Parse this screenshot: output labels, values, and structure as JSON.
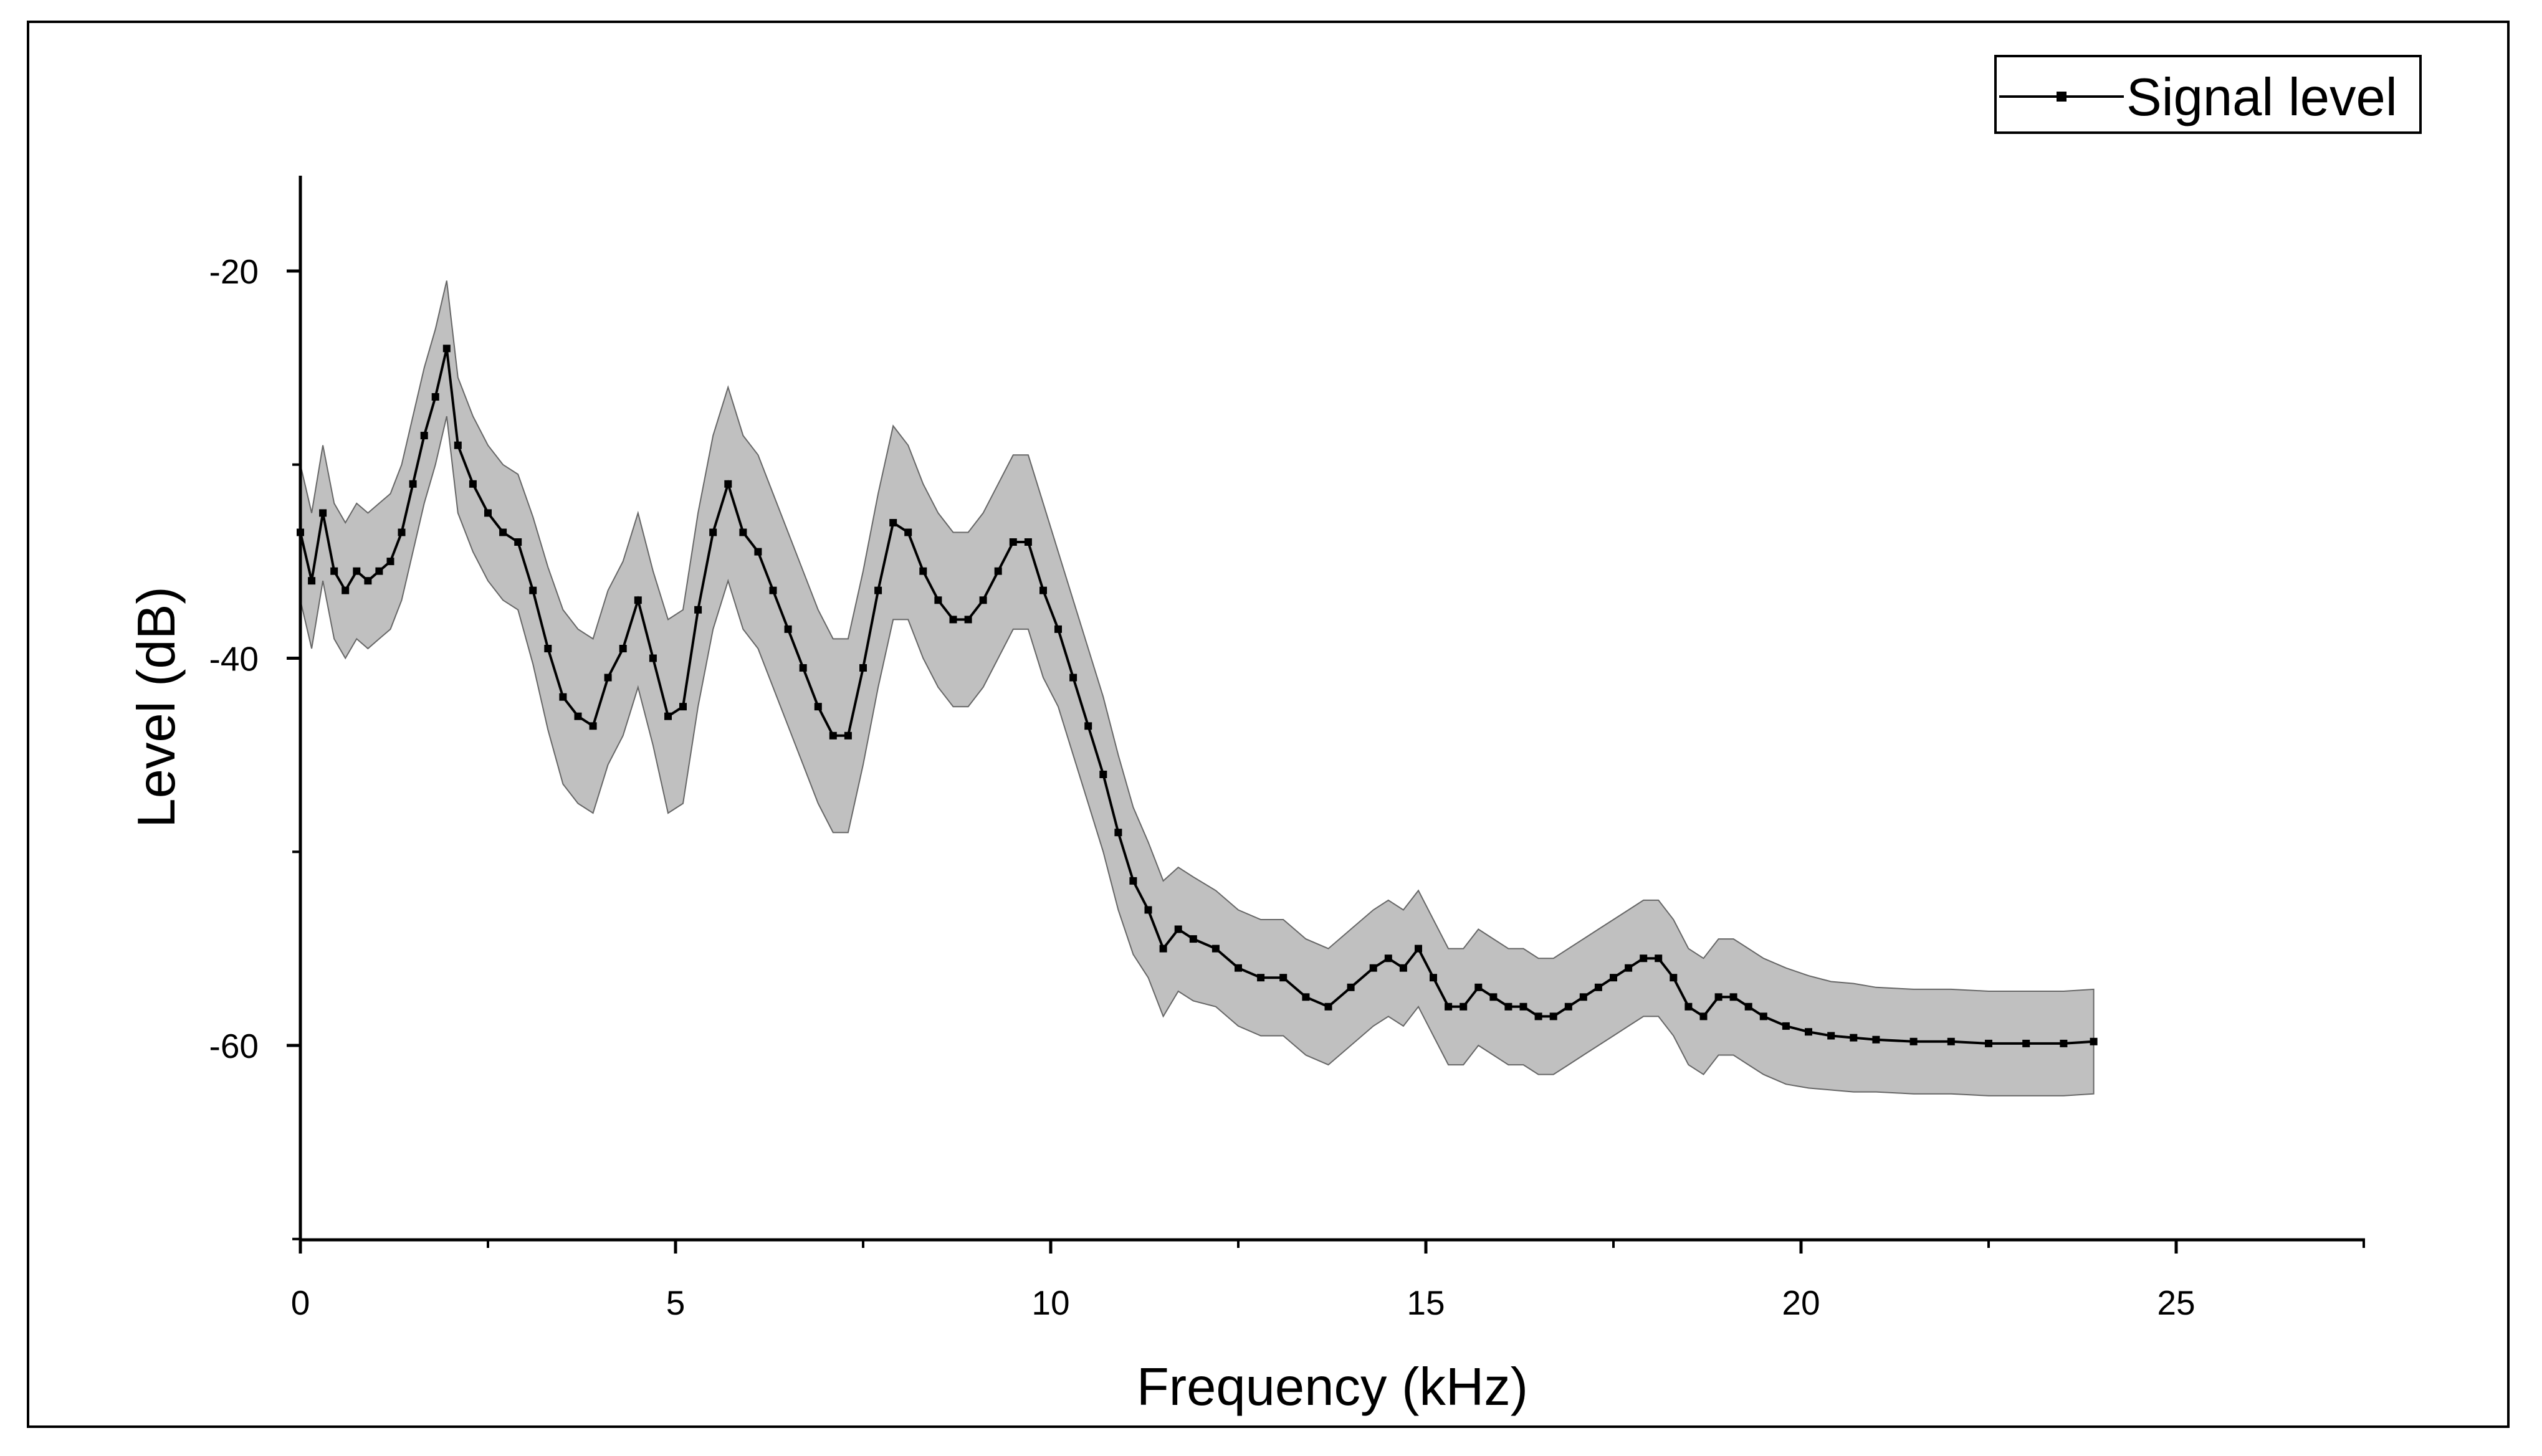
{
  "chart_data": {
    "type": "line",
    "title": "",
    "xlabel": "Frequency (kHz)",
    "ylabel": "Level (dB)",
    "xlim": [
      0,
      27.5
    ],
    "ylim": [
      -70,
      -15
    ],
    "xticks": [
      0,
      5,
      10,
      15,
      20,
      25
    ],
    "xtick_labels": [
      "0",
      "5",
      "10",
      "15",
      "20",
      "25"
    ],
    "yticks": [
      -20,
      -40,
      -60
    ],
    "ytick_labels": [
      "-20",
      "-40",
      "-60"
    ],
    "grid": false,
    "legend": {
      "position": "top-right",
      "entries": [
        "Signal level"
      ]
    },
    "colors": {
      "line": "#000000",
      "band": "#c0c0c0",
      "band_edge": "#555555"
    },
    "series": [
      {
        "name": "Signal level",
        "x": [
          0,
          0.15,
          0.3,
          0.45,
          0.6,
          0.75,
          0.9,
          1.05,
          1.2,
          1.35,
          1.5,
          1.65,
          1.8,
          1.95,
          2.1,
          2.3,
          2.5,
          2.7,
          2.9,
          3.1,
          3.3,
          3.5,
          3.7,
          3.9,
          4.1,
          4.3,
          4.5,
          4.7,
          4.9,
          5.1,
          5.3,
          5.5,
          5.7,
          5.9,
          6.1,
          6.3,
          6.5,
          6.7,
          6.9,
          7.1,
          7.3,
          7.5,
          7.7,
          7.9,
          8.1,
          8.3,
          8.5,
          8.7,
          8.9,
          9.1,
          9.3,
          9.5,
          9.7,
          9.9,
          10.1,
          10.3,
          10.5,
          10.7,
          10.9,
          11.1,
          11.3,
          11.5,
          11.7,
          11.9,
          12.2,
          12.5,
          12.8,
          13.1,
          13.4,
          13.7,
          14.0,
          14.3,
          14.5,
          14.7,
          14.9,
          15.1,
          15.3,
          15.5,
          15.7,
          15.9,
          16.1,
          16.3,
          16.5,
          16.7,
          16.9,
          17.1,
          17.3,
          17.5,
          17.7,
          17.9,
          18.1,
          18.3,
          18.5,
          18.7,
          18.9,
          19.1,
          19.3,
          19.5,
          19.8,
          20.1,
          20.4,
          20.7,
          21.0,
          21.5,
          22.0,
          22.5,
          23.0,
          23.5,
          23.9
        ],
        "y": [
          -33.5,
          -36.0,
          -32.5,
          -35.5,
          -36.5,
          -35.5,
          -36.0,
          -35.5,
          -35.0,
          -33.5,
          -31.0,
          -28.5,
          -26.5,
          -24.0,
          -29.0,
          -31.0,
          -32.5,
          -33.5,
          -34.0,
          -36.5,
          -39.5,
          -42.0,
          -43.0,
          -43.5,
          -41.0,
          -39.5,
          -37.0,
          -40.0,
          -43.0,
          -42.5,
          -37.5,
          -33.5,
          -31.0,
          -33.5,
          -34.5,
          -36.5,
          -38.5,
          -40.5,
          -42.5,
          -44.0,
          -44.0,
          -40.5,
          -36.5,
          -33.0,
          -33.5,
          -35.5,
          -37.0,
          -38.0,
          -38.0,
          -37.0,
          -35.5,
          -34.0,
          -34.0,
          -36.5,
          -38.5,
          -41.0,
          -43.5,
          -46.0,
          -49.0,
          -51.5,
          -53.0,
          -55.0,
          -54.0,
          -54.5,
          -55.0,
          -56.0,
          -56.5,
          -56.5,
          -57.5,
          -58.0,
          -57.0,
          -56.0,
          -55.5,
          -56.0,
          -55.0,
          -56.5,
          -58.0,
          -58.0,
          -57.0,
          -57.5,
          -58.0,
          -58.0,
          -58.5,
          -58.5,
          -58.0,
          -57.5,
          -57.0,
          -56.5,
          -56.0,
          -55.5,
          -55.5,
          -56.5,
          -58.0,
          -58.5,
          -57.5,
          -57.5,
          -58.0,
          -58.5,
          -59.0,
          -59.3,
          -59.5,
          -59.6,
          -59.7,
          -59.8,
          -59.8,
          -59.9,
          -59.9,
          -59.9,
          -59.8
        ]
      }
    ],
    "band_halfwidth": [
      3.5,
      3.5,
      3.5,
      3.5,
      3.5,
      3.5,
      3.5,
      3.5,
      3.5,
      3.5,
      3.5,
      3.5,
      3.5,
      3.5,
      3.5,
      3.5,
      3.5,
      3.5,
      3.5,
      3.8,
      4.2,
      4.5,
      4.5,
      4.5,
      4.5,
      4.5,
      4.5,
      4.5,
      5.0,
      5.0,
      5.0,
      5.0,
      5.0,
      5.0,
      5.0,
      5.0,
      5.0,
      5.0,
      5.0,
      5.0,
      5.0,
      5.0,
      5.0,
      5.0,
      4.5,
      4.5,
      4.5,
      4.5,
      4.5,
      4.5,
      4.5,
      4.5,
      4.5,
      4.5,
      4.0,
      4.0,
      4.0,
      4.0,
      4.0,
      3.8,
      3.5,
      3.5,
      3.2,
      3.2,
      3.0,
      3.0,
      3.0,
      3.0,
      3.0,
      3.0,
      3.0,
      3.0,
      3.0,
      3.0,
      3.0,
      3.0,
      3.0,
      3.0,
      3.0,
      3.0,
      3.0,
      3.0,
      3.0,
      3.0,
      3.0,
      3.0,
      3.0,
      3.0,
      3.0,
      3.0,
      3.0,
      3.0,
      3.0,
      3.0,
      3.0,
      3.0,
      3.0,
      3.0,
      3.0,
      2.9,
      2.8,
      2.8,
      2.7,
      2.7,
      2.7,
      2.7,
      2.7,
      2.7,
      2.7
    ]
  }
}
